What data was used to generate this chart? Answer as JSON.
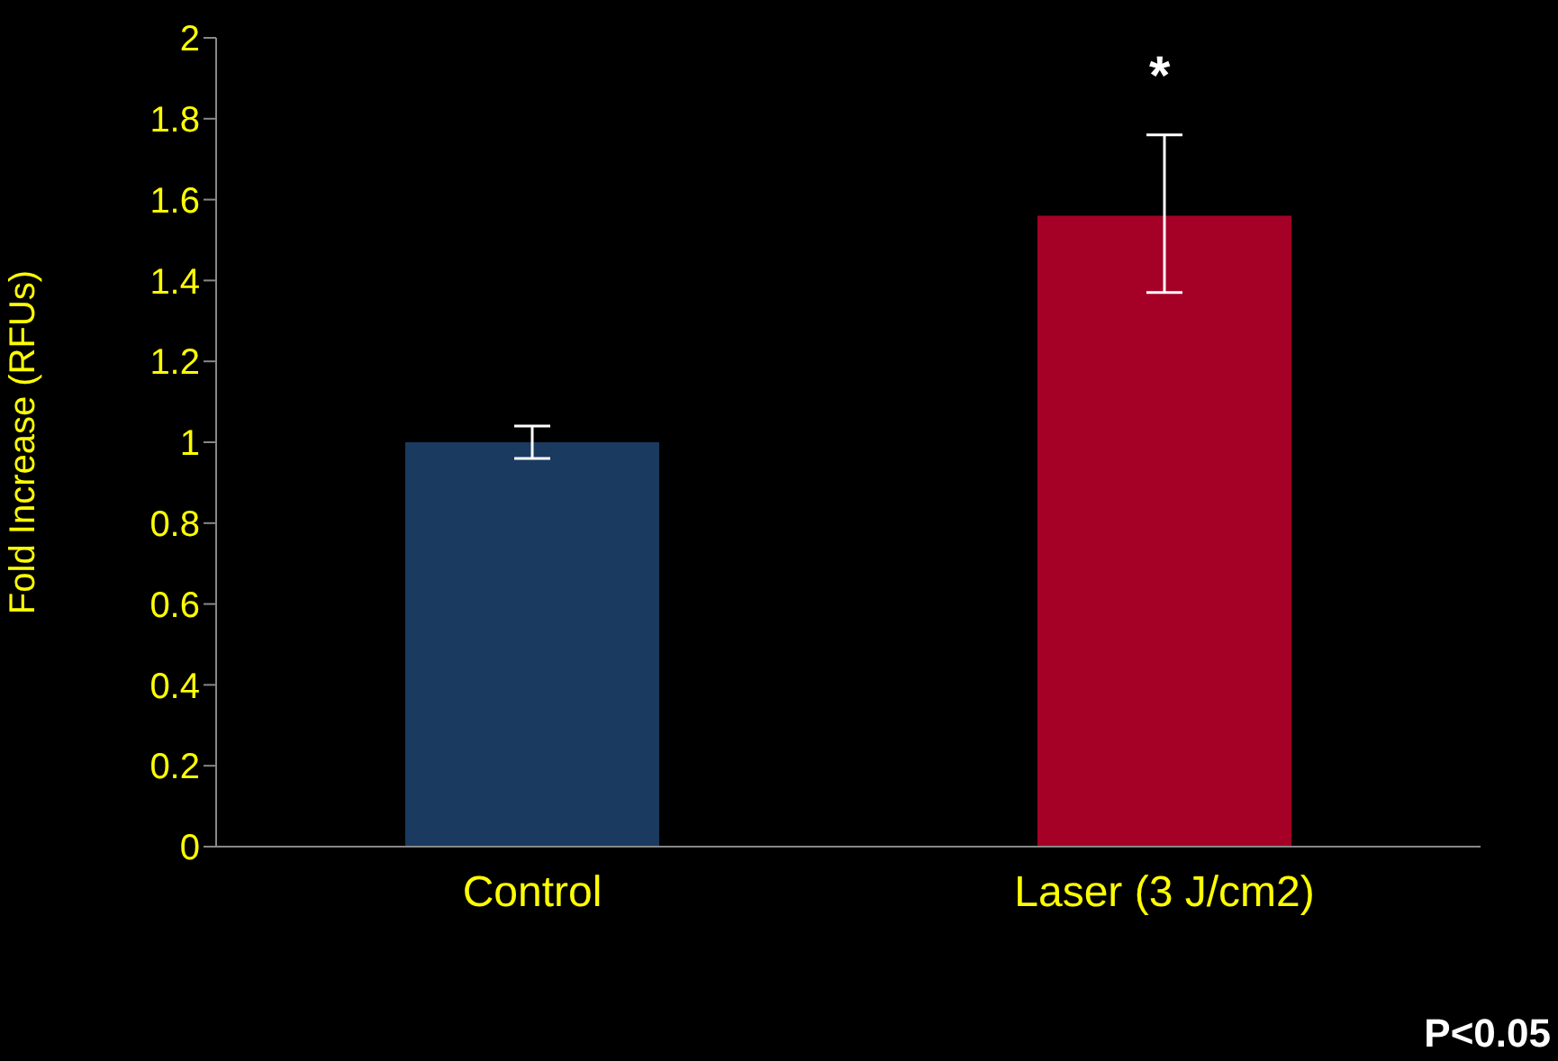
{
  "chart_data": {
    "type": "bar",
    "ylabel": "Fold Increase (RFUs)",
    "categories": [
      "Control",
      "Laser (3 J/cm2)"
    ],
    "values": [
      1.0,
      1.56
    ],
    "colors": [
      "#1a3a5f",
      "#a50026"
    ],
    "errors": [
      0.04,
      [
        1.37,
        1.76
      ]
    ],
    "ylim": [
      0,
      2
    ],
    "yticks": [
      0,
      0.2,
      0.4,
      0.6,
      0.8,
      1,
      1.2,
      1.4,
      1.6,
      1.8,
      2
    ],
    "grid": false,
    "legend": false,
    "annotations": [
      "*",
      "P<0.05"
    ]
  }
}
